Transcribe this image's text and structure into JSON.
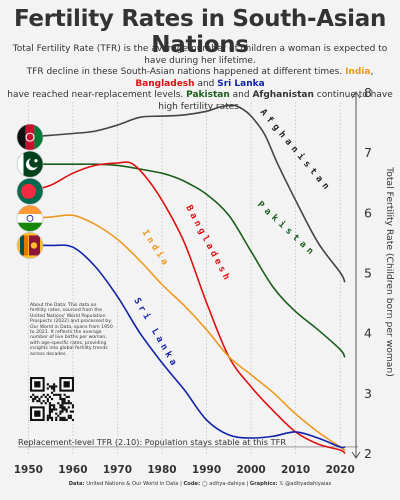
{
  "chart_data": {
    "type": "line",
    "title": "Fertility Rates in South-Asian Nations",
    "subtitle": {
      "line1": "Total Fertility Rate (TFR) is the average number of children a woman is expected to have during her lifetime.",
      "line2_pre": "TFR decline in these South-Asian nations happened at different times.",
      "line2_india": "India",
      "line2_bangladesh": "Bangladesh",
      "line2_and": "and",
      "line2_srilanka": "Sri Lanka",
      "line3_pre": "have reached near-replacement levels.",
      "line3_pakistan": "Pakistan",
      "line3_and": "and",
      "line3_afghanistan": "Afghanistan",
      "line3_post": "continue to have high fertility rates."
    },
    "ylabel": "Total Fertility Rate (Children born per woman)",
    "xlabel": "",
    "xlim": [
      1947,
      2024
    ],
    "ylim": [
      2,
      8
    ],
    "x_ticks": [
      1950,
      1960,
      1970,
      1980,
      1990,
      2000,
      2010,
      2020
    ],
    "y_ticks": [
      2,
      3,
      4,
      5,
      6,
      7,
      8
    ],
    "grid": "vertical dotted",
    "replacement": {
      "value": 2.1,
      "label": "Replacement-level TFR  (2.10): Population stays stable at this TFR"
    },
    "series": [
      {
        "name": "Afghanistan",
        "color": "#444444",
        "x": [
          1950,
          1955,
          1960,
          1965,
          1970,
          1975,
          1980,
          1985,
          1990,
          1993,
          1996,
          1998,
          2000,
          2003,
          2006,
          2010,
          2015,
          2020,
          2021
        ],
        "y": [
          7.25,
          7.28,
          7.31,
          7.35,
          7.45,
          7.58,
          7.6,
          7.62,
          7.68,
          7.75,
          7.78,
          7.72,
          7.6,
          7.3,
          6.8,
          6.2,
          5.5,
          5.0,
          4.85
        ]
      },
      {
        "name": "Pakistan",
        "color": "#1a5e1a",
        "x": [
          1950,
          1955,
          1960,
          1965,
          1970,
          1975,
          1980,
          1983,
          1986,
          1990,
          1995,
          2000,
          2005,
          2010,
          2015,
          2020,
          2021
        ],
        "y": [
          6.8,
          6.8,
          6.8,
          6.8,
          6.78,
          6.72,
          6.65,
          6.58,
          6.48,
          6.3,
          5.95,
          5.35,
          4.75,
          4.35,
          4.05,
          3.72,
          3.6
        ]
      },
      {
        "name": "Bangladesh",
        "color": "#dd1111",
        "x": [
          1950,
          1955,
          1960,
          1965,
          1970,
          1973,
          1976,
          1980,
          1985,
          1990,
          1995,
          2000,
          2005,
          2010,
          2015,
          2020,
          2021
        ],
        "y": [
          6.35,
          6.45,
          6.65,
          6.78,
          6.82,
          6.82,
          6.62,
          6.2,
          5.5,
          4.5,
          3.6,
          3.1,
          2.7,
          2.35,
          2.15,
          2.05,
          2.0
        ]
      },
      {
        "name": "India",
        "color": "#ee9922",
        "x": [
          1950,
          1955,
          1960,
          1965,
          1970,
          1975,
          1980,
          1985,
          1990,
          1995,
          2000,
          2005,
          2010,
          2015,
          2020,
          2021
        ],
        "y": [
          5.9,
          5.92,
          5.95,
          5.8,
          5.55,
          5.2,
          4.8,
          4.45,
          4.05,
          3.6,
          3.3,
          3.0,
          2.65,
          2.35,
          2.1,
          2.05
        ]
      },
      {
        "name": "Sri Lanka",
        "color": "#1122aa",
        "x": [
          1950,
          1955,
          1960,
          1965,
          1970,
          1975,
          1980,
          1985,
          1990,
          1995,
          2000,
          2005,
          2010,
          2015,
          2020,
          2021
        ],
        "y": [
          5.45,
          5.45,
          5.42,
          5.1,
          4.6,
          4.0,
          3.5,
          3.05,
          2.55,
          2.3,
          2.25,
          2.28,
          2.35,
          2.25,
          2.1,
          2.1
        ]
      }
    ],
    "flags": [
      {
        "country": "Afghanistan",
        "icon": "afghanistan-flag-icon",
        "value": 7.25
      },
      {
        "country": "Pakistan",
        "icon": "pakistan-flag-icon",
        "value": 6.8
      },
      {
        "country": "Bangladesh",
        "icon": "bangladesh-flag-icon",
        "value": 6.35
      },
      {
        "country": "India",
        "icon": "india-flag-icon",
        "value": 5.9
      },
      {
        "country": "Sri Lanka",
        "icon": "sri-lanka-flag-icon",
        "value": 5.45
      }
    ],
    "series_labels": [
      {
        "text": "Afghanistan",
        "color": "#222222"
      },
      {
        "text": "Pakistan",
        "color": "#1a5e1a"
      },
      {
        "text": "Bangladesh",
        "color": "#dd1111"
      },
      {
        "text": "India",
        "color": "#ee9922"
      },
      {
        "text": "Sri Lanka",
        "color": "#1122aa"
      }
    ]
  },
  "about": "About the Data: This data on fertility rates, sourced from the United Nations' World Population Prospects (2022) and processed by Our World in Data, spans from 1950 to 2021. It reflects the average number of live births per woman, with age-specific rates, providing insights into global fertility trends across decades.",
  "footer": {
    "data_label": "Data:",
    "data_value": "United Nations & Our World in Data",
    "code_label": "Code:",
    "code_value": "aditya-dahiya",
    "graphics_label": "Graphics:",
    "graphics_value": "@adityadahiyaias"
  }
}
